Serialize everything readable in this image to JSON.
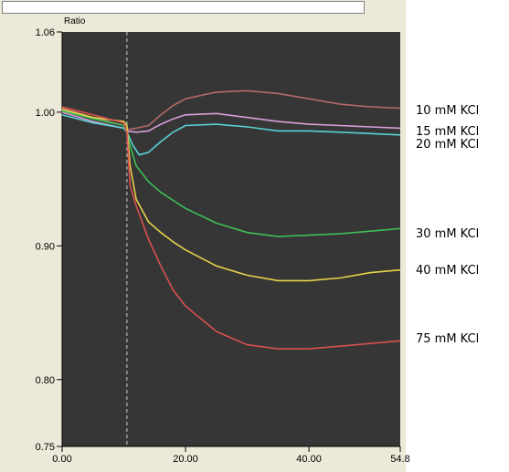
{
  "chart_data": {
    "type": "line",
    "ylabel": "Ratio",
    "xlabel": "",
    "xlim": [
      0,
      54.8
    ],
    "ylim": [
      0.75,
      1.06
    ],
    "x_ticks": [
      "0.00",
      "20.00",
      "40.00",
      "54.8"
    ],
    "x_tick_values": [
      0,
      20,
      40,
      54.8
    ],
    "y_ticks": [
      "0.75",
      "0.80",
      "0.90",
      "1.00",
      "1.06"
    ],
    "y_tick_values": [
      0.75,
      0.8,
      0.9,
      1.0,
      1.06
    ],
    "stimulus_time": 10.5,
    "plot_background": "#363636",
    "series": [
      {
        "name": "10 mM KCl",
        "color": "#b56a6a",
        "x": [
          0,
          5,
          10,
          10.5,
          12,
          14,
          16,
          18,
          20,
          25,
          30,
          35,
          40,
          45,
          50,
          54.8
        ],
        "y": [
          1.003,
          0.996,
          0.99,
          0.987,
          0.988,
          0.99,
          0.998,
          1.005,
          1.01,
          1.015,
          1.016,
          1.014,
          1.01,
          1.006,
          1.004,
          1.003
        ]
      },
      {
        "name": "15 mM KCl",
        "color": "#d8a0d8",
        "x": [
          0,
          5,
          10,
          10.5,
          12,
          14,
          16,
          18,
          20,
          25,
          30,
          35,
          40,
          45,
          50,
          54.8
        ],
        "y": [
          1.0,
          0.993,
          0.988,
          0.986,
          0.985,
          0.986,
          0.991,
          0.995,
          0.998,
          0.999,
          0.996,
          0.993,
          0.991,
          0.99,
          0.989,
          0.988
        ]
      },
      {
        "name": "20 mM KCl",
        "color": "#5ad2d2",
        "x": [
          0,
          5,
          10,
          10.5,
          11.5,
          12.5,
          14,
          16,
          18,
          20,
          25,
          30,
          35,
          40,
          45,
          50,
          54.8
        ],
        "y": [
          0.998,
          0.992,
          0.988,
          0.985,
          0.975,
          0.968,
          0.97,
          0.978,
          0.985,
          0.99,
          0.991,
          0.989,
          0.986,
          0.986,
          0.985,
          0.984,
          0.983
        ]
      },
      {
        "name": "30 mM KCl",
        "color": "#3fbf57",
        "x": [
          0,
          5,
          10,
          10.5,
          11,
          12,
          14,
          16,
          18,
          20,
          25,
          30,
          35,
          40,
          45,
          50,
          54.8
        ],
        "y": [
          1.001,
          0.995,
          0.99,
          0.985,
          0.975,
          0.96,
          0.948,
          0.94,
          0.934,
          0.928,
          0.917,
          0.91,
          0.907,
          0.908,
          0.909,
          0.911,
          0.913
        ]
      },
      {
        "name": "40 mM KCl",
        "color": "#e6d24a",
        "x": [
          0,
          5,
          10,
          10.5,
          11,
          12,
          14,
          16,
          18,
          20,
          25,
          30,
          35,
          40,
          45,
          50,
          54.8
        ],
        "y": [
          1.002,
          0.996,
          0.993,
          0.99,
          0.96,
          0.935,
          0.918,
          0.91,
          0.903,
          0.897,
          0.885,
          0.878,
          0.874,
          0.874,
          0.876,
          0.88,
          0.882
        ]
      },
      {
        "name": "75 mM KCl",
        "color": "#d85050",
        "x": [
          0,
          5,
          10,
          10.5,
          11,
          12,
          14,
          16,
          18,
          20,
          25,
          30,
          35,
          40,
          45,
          50,
          54.8
        ],
        "y": [
          1.004,
          0.998,
          0.992,
          0.985,
          0.945,
          0.93,
          0.905,
          0.885,
          0.867,
          0.855,
          0.836,
          0.826,
          0.823,
          0.823,
          0.825,
          0.827,
          0.829
        ]
      }
    ]
  }
}
